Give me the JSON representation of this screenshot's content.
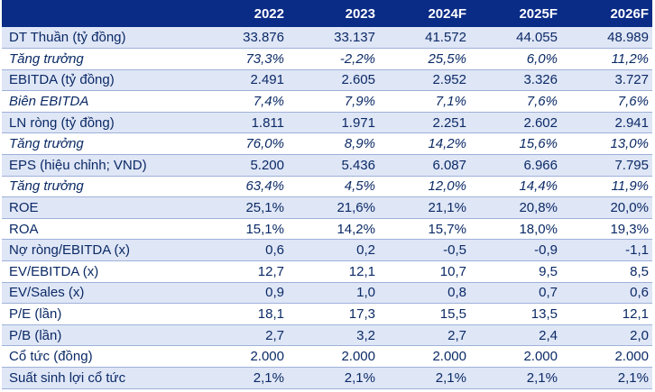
{
  "table": {
    "headers": [
      "",
      "2022",
      "2023",
      "2024F",
      "2025F",
      "2026F"
    ],
    "rows": [
      {
        "label": "DT Thuần (tỷ đồng)",
        "values": [
          "33.876",
          "33.137",
          "41.572",
          "44.055",
          "48.989"
        ],
        "italic": false,
        "shaded": true
      },
      {
        "label": "Tăng trưởng",
        "values": [
          "73,3%",
          "-2,2%",
          "25,5%",
          "6,0%",
          "11,2%"
        ],
        "italic": true,
        "shaded": false
      },
      {
        "label": "EBITDA (tỷ đồng)",
        "values": [
          "2.491",
          "2.605",
          "2.952",
          "3.326",
          "3.727"
        ],
        "italic": false,
        "shaded": true
      },
      {
        "label": "Biên EBITDA",
        "values": [
          "7,4%",
          "7,9%",
          "7,1%",
          "7,6%",
          "7,6%"
        ],
        "italic": true,
        "shaded": false
      },
      {
        "label": "LN ròng (tỷ đồng)",
        "values": [
          "1.811",
          "1.971",
          "2.251",
          "2.602",
          "2.941"
        ],
        "italic": false,
        "shaded": true
      },
      {
        "label": "Tăng trưởng",
        "values": [
          "76,0%",
          "8,9%",
          "14,2%",
          "15,6%",
          "13,0%"
        ],
        "italic": true,
        "shaded": false
      },
      {
        "label": "EPS (hiệu chỉnh; VND)",
        "values": [
          "5.200",
          "5.436",
          "6.087",
          "6.966",
          "7.795"
        ],
        "italic": false,
        "shaded": true
      },
      {
        "label": "Tăng trưởng",
        "values": [
          "63,4%",
          "4,5%",
          "12,0%",
          "14,4%",
          "11,9%"
        ],
        "italic": true,
        "shaded": false
      },
      {
        "label": "ROE",
        "values": [
          "25,1%",
          "21,6%",
          "21,1%",
          "20,8%",
          "20,0%"
        ],
        "italic": false,
        "shaded": true
      },
      {
        "label": "ROA",
        "values": [
          "15,1%",
          "14,2%",
          "15,7%",
          "18,0%",
          "19,3%"
        ],
        "italic": false,
        "shaded": false
      },
      {
        "label": "Nợ ròng/EBITDA (x)",
        "values": [
          "0,6",
          "0,2",
          "-0,5",
          "-0,9",
          "-1,1"
        ],
        "italic": false,
        "shaded": true
      },
      {
        "label": "EV/EBITDA (x)",
        "values": [
          "12,7",
          "12,1",
          "10,7",
          "9,5",
          "8,5"
        ],
        "italic": false,
        "shaded": false
      },
      {
        "label": "EV/Sales (x)",
        "values": [
          "0,9",
          "1,0",
          "0,8",
          "0,7",
          "0,6"
        ],
        "italic": false,
        "shaded": true
      },
      {
        "label": "P/E (lần)",
        "values": [
          "18,1",
          "17,3",
          "15,5",
          "13,5",
          "12,1"
        ],
        "italic": false,
        "shaded": false
      },
      {
        "label": "P/B (lần)",
        "values": [
          "2,7",
          "3,2",
          "2,7",
          "2,4",
          "2,0"
        ],
        "italic": false,
        "shaded": true
      },
      {
        "label": "Cổ tức (đồng)",
        "values": [
          "2.000",
          "2.000",
          "2.000",
          "2.000",
          "2.000"
        ],
        "italic": false,
        "shaded": false
      },
      {
        "label": "Suất sinh lợi cổ tức",
        "values": [
          "2,1%",
          "2,1%",
          "2,1%",
          "2,1%",
          "2,1%"
        ],
        "italic": false,
        "shaded": true
      }
    ]
  }
}
